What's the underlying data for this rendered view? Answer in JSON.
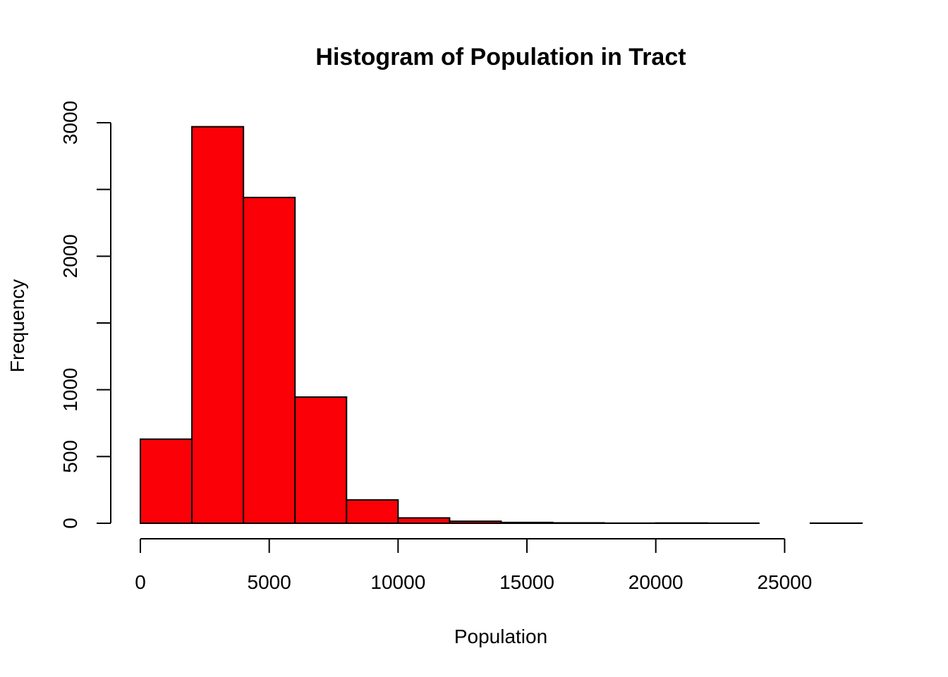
{
  "chart_data": {
    "type": "bar",
    "title": "Histogram of Population in Tract",
    "xlabel": "Population",
    "ylabel": "Frequency",
    "bin_width": 2000,
    "bins": [
      {
        "x0": 0,
        "x1": 2000,
        "count": 630
      },
      {
        "x0": 2000,
        "x1": 4000,
        "count": 2970
      },
      {
        "x0": 4000,
        "x1": 6000,
        "count": 2440
      },
      {
        "x0": 6000,
        "x1": 8000,
        "count": 945
      },
      {
        "x0": 8000,
        "x1": 10000,
        "count": 175
      },
      {
        "x0": 10000,
        "x1": 12000,
        "count": 40
      },
      {
        "x0": 12000,
        "x1": 14000,
        "count": 15
      },
      {
        "x0": 14000,
        "x1": 16000,
        "count": 6
      },
      {
        "x0": 16000,
        "x1": 18000,
        "count": 3
      },
      {
        "x0": 18000,
        "x1": 20000,
        "count": 1
      },
      {
        "x0": 20000,
        "x1": 22000,
        "count": 2
      },
      {
        "x0": 22000,
        "x1": 24000,
        "count": 1
      },
      {
        "x0": 24000,
        "x1": 26000,
        "count": 0
      },
      {
        "x0": 26000,
        "x1": 28000,
        "count": 1
      }
    ],
    "x_ticks": [
      0,
      5000,
      10000,
      15000,
      20000,
      25000
    ],
    "x_tick_labels": [
      "0",
      "5000",
      "10000",
      "15000",
      "20000",
      "25000"
    ],
    "y_ticks": [
      0,
      500,
      1000,
      1500,
      2000,
      2500,
      3000
    ],
    "y_tick_labels": [
      "0",
      "500",
      "1000",
      "",
      "2000",
      "",
      "3000"
    ],
    "xlim": [
      0,
      28000
    ],
    "ylim": [
      0,
      3000
    ],
    "bar_color": "#fb0007",
    "edge_color": "#000000",
    "grid": false
  }
}
